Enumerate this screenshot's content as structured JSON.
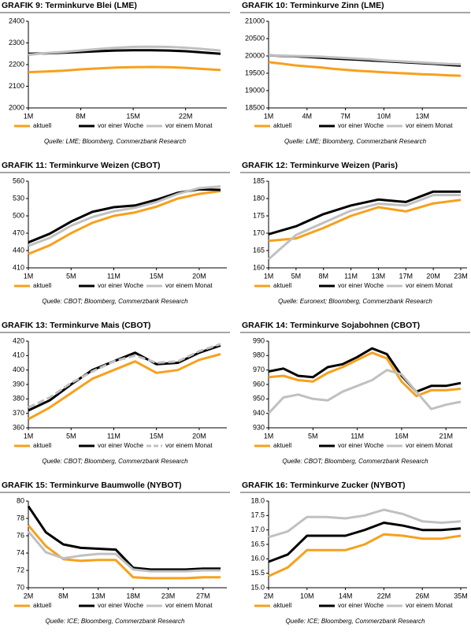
{
  "chart_data": [
    {
      "type": "line",
      "title": "GRAFIK 9: Terminkurve Blei (LME)",
      "source": "Quelle: LME; Bloomberg, Commerzbank Research",
      "categories": [
        "1M",
        null,
        null,
        "8M",
        null,
        null,
        "15M",
        null,
        null,
        "22M",
        null,
        null
      ],
      "ylim": [
        2000,
        2400
      ],
      "yticks": [
        2000,
        2100,
        2200,
        2300,
        2400
      ],
      "series": [
        {
          "name": "aktuell",
          "color": "#f7a01c",
          "values": [
            2165,
            2168,
            2172,
            2178,
            2182,
            2186,
            2188,
            2189,
            2188,
            2185,
            2180,
            2175
          ]
        },
        {
          "name": "vor einer Woche",
          "color": "#000000",
          "values": [
            2250,
            2252,
            2255,
            2258,
            2262,
            2265,
            2266,
            2266,
            2265,
            2262,
            2256,
            2250
          ]
        },
        {
          "name": "vor einem Monat",
          "color": "#c0c0c0",
          "values": [
            2245,
            2253,
            2258,
            2265,
            2272,
            2278,
            2282,
            2283,
            2282,
            2278,
            2272,
            2265
          ]
        }
      ]
    },
    {
      "type": "line",
      "title": "GRAFIK 10: Terminkurve Zinn (LME)",
      "source": "Quelle: LME; Bloomberg, Commerzbank Research",
      "categories": [
        "1M",
        null,
        null,
        "4M",
        null,
        null,
        "7M",
        null,
        null,
        "10M",
        null,
        null,
        "13M",
        null,
        null,
        null
      ],
      "ylim": [
        18500,
        21000
      ],
      "yticks": [
        18500,
        19000,
        19500,
        20000,
        20500,
        21000
      ],
      "series": [
        {
          "name": "aktuell",
          "color": "#f7a01c",
          "values": [
            19820,
            19780,
            19730,
            19700,
            19670,
            19630,
            19600,
            19570,
            19550,
            19530,
            19510,
            19490,
            19470,
            19460,
            19440,
            19430
          ]
        },
        {
          "name": "vor einer Woche",
          "color": "#000000",
          "values": [
            20020,
            20000,
            19990,
            19970,
            19950,
            19930,
            19910,
            19890,
            19870,
            19850,
            19830,
            19810,
            19790,
            19770,
            19740,
            19720
          ]
        },
        {
          "name": "vor einem Monat",
          "color": "#c0c0c0",
          "values": [
            20020,
            20010,
            20000,
            19990,
            19980,
            19960,
            19940,
            19920,
            19900,
            19870,
            19850,
            19830,
            19810,
            19790,
            19770,
            19760
          ]
        }
      ]
    },
    {
      "type": "line",
      "title": "GRAFIK 11: Terminkurve Weizen (CBOT)",
      "source": "Quelle: CBOT; Bloomberg, Commerzbank Research",
      "categories": [
        "1M",
        null,
        "5M",
        null,
        "11M",
        null,
        "15M",
        null,
        "20M",
        null
      ],
      "ylim": [
        410,
        560
      ],
      "yticks": [
        410,
        440,
        470,
        500,
        530,
        560
      ],
      "series": [
        {
          "name": "aktuell",
          "color": "#f7a01c",
          "values": [
            434,
            449,
            470,
            488,
            500,
            506,
            516,
            530,
            538,
            543
          ]
        },
        {
          "name": "vor einer Woche",
          "color": "#000000",
          "values": [
            454,
            469,
            490,
            507,
            515,
            518,
            528,
            540,
            546,
            545
          ]
        },
        {
          "name": "vor einem Monat",
          "color": "#c0c0c0",
          "values": [
            448,
            462,
            483,
            498,
            508,
            514,
            524,
            538,
            548,
            551
          ]
        }
      ]
    },
    {
      "type": "line",
      "title": "GRAFIK 12: Terminkurve Weizen (Paris)",
      "source": "Quelle: Euronext; Bloomberg, Commerzbank Research",
      "categories": [
        "1M",
        "5M",
        "8M",
        "11M",
        "13M",
        "17M",
        "20M",
        "23M"
      ],
      "ylim": [
        160,
        185
      ],
      "yticks": [
        160,
        165,
        170,
        175,
        180,
        185
      ],
      "series": [
        {
          "name": "aktuell",
          "color": "#f7a01c",
          "values": [
            167.8,
            168.5,
            171.5,
            175,
            177.5,
            176.3,
            178.6,
            179.6
          ]
        },
        {
          "name": "vor einer Woche",
          "color": "#000000",
          "values": [
            169.7,
            172,
            175.5,
            178,
            179.7,
            179,
            182,
            182
          ]
        },
        {
          "name": "vor einem Monat",
          "color": "#c0c0c0",
          "values": [
            162.5,
            169.5,
            173,
            176.5,
            178.5,
            178,
            181,
            181
          ]
        }
      ]
    },
    {
      "type": "line",
      "title": "GRAFIK 13: Terminkurve Mais (CBOT)",
      "source": "Quelle: CBOT; Bloomberg, Commerzbank Research",
      "categories": [
        "1M",
        null,
        "5M",
        null,
        "11M",
        null,
        "15M",
        null,
        "20M",
        null
      ],
      "ylim": [
        360,
        420
      ],
      "yticks": [
        360,
        370,
        380,
        390,
        400,
        410,
        420
      ],
      "series": [
        {
          "name": "aktuell",
          "color": "#f7a01c",
          "values": [
            366,
            374,
            384,
            394,
            400,
            406,
            398,
            400,
            407,
            411
          ]
        },
        {
          "name": "vor einer Woche",
          "color": "#000000",
          "values": [
            372,
            379,
            390,
            400,
            406,
            412,
            404,
            405,
            412,
            417
          ]
        },
        {
          "name": "vor einem Monat",
          "color": "#c0c0c0",
          "dashed": true,
          "values": [
            374,
            381,
            391,
            399,
            406,
            410,
            405,
            406,
            413,
            418
          ]
        }
      ]
    },
    {
      "type": "line",
      "title": "GRAFIK 14: Terminkurve Sojabohnen (CBOT)",
      "source": "Quelle: CBOT; Bloomberg, Commerzbank Research",
      "categories": [
        "1M",
        null,
        null,
        "5M",
        null,
        null,
        "11M",
        null,
        null,
        "16M",
        null,
        null,
        "21M",
        null
      ],
      "ylim": [
        930,
        990
      ],
      "yticks": [
        930,
        940,
        950,
        960,
        970,
        980,
        990
      ],
      "series": [
        {
          "name": "aktuell",
          "color": "#f7a01c",
          "values": [
            965,
            966,
            963,
            962,
            968,
            972,
            977,
            982,
            978,
            962,
            952,
            956,
            956,
            957
          ]
        },
        {
          "name": "vor einer Woche",
          "color": "#000000",
          "values": [
            969,
            971,
            966,
            965,
            972,
            974,
            979,
            985,
            981,
            966,
            955,
            959,
            959,
            961
          ]
        },
        {
          "name": "vor einem Monat",
          "color": "#c0c0c0",
          "values": [
            940,
            951,
            953,
            950,
            949,
            955,
            959,
            963,
            970,
            967,
            955,
            943,
            946,
            948
          ]
        }
      ]
    },
    {
      "type": "line",
      "title": "GRAFIK 15: Terminkurve Baumwolle (NYBOT)",
      "source": "Quelle: ICE; Bloomberg, Commerzbank Research",
      "categories": [
        "2M",
        null,
        "8M",
        null,
        "13M",
        null,
        "18M",
        null,
        "23M",
        null,
        "27M",
        null
      ],
      "ylim": [
        70,
        80
      ],
      "yticks": [
        70,
        72,
        74,
        76,
        78,
        80
      ],
      "series": [
        {
          "name": "aktuell",
          "color": "#f7a01c",
          "values": [
            77.2,
            74.8,
            73.3,
            73.1,
            73.2,
            73.2,
            71.2,
            71.1,
            71.1,
            71.1,
            71.2,
            71.2
          ]
        },
        {
          "name": "vor einer Woche",
          "color": "#000000",
          "values": [
            79.4,
            76.4,
            75.0,
            74.6,
            74.5,
            74.4,
            72.3,
            72.1,
            72.1,
            72.1,
            72.2,
            72.2
          ]
        },
        {
          "name": "vor einem Monat",
          "color": "#c0c0c0",
          "values": [
            76.5,
            74.1,
            73.4,
            73.7,
            73.9,
            73.9,
            72.1,
            71.9,
            71.9,
            71.9,
            72.0,
            72.0
          ]
        }
      ]
    },
    {
      "type": "line",
      "title": "GRAFIK 16: Terminkurve Zucker (NYBOT)",
      "source": "Quelle: ICE; Bloomberg, Commerzbank Research",
      "categories": [
        "2M",
        null,
        "10M",
        null,
        "14M",
        null,
        "22M",
        null,
        "26M",
        null,
        "35M"
      ],
      "ylim": [
        15,
        18
      ],
      "yticks": [
        {
          "value": 15,
          "label": "15.0"
        },
        {
          "value": 15.5,
          "label": "15.5"
        },
        {
          "value": 16,
          "label": "16.0"
        },
        {
          "value": 16.5,
          "label": "16.5"
        },
        {
          "value": 17,
          "label": "17.0"
        },
        {
          "value": 17.5,
          "label": "17.5"
        },
        {
          "value": 18,
          "label": "18.0"
        }
      ],
      "series": [
        {
          "name": "aktuell",
          "color": "#f7a01c",
          "values": [
            15.4,
            15.7,
            16.3,
            16.3,
            16.3,
            16.5,
            16.85,
            16.8,
            16.7,
            16.7,
            16.8
          ]
        },
        {
          "name": "vor einer Woche",
          "color": "#000000",
          "values": [
            15.9,
            16.15,
            16.8,
            16.8,
            16.8,
            17.0,
            17.25,
            17.15,
            17.0,
            17.0,
            17.05
          ]
        },
        {
          "name": "vor einem Monat",
          "color": "#c0c0c0",
          "values": [
            16.75,
            16.95,
            17.45,
            17.45,
            17.4,
            17.5,
            17.7,
            17.55,
            17.3,
            17.25,
            17.3
          ]
        }
      ]
    }
  ]
}
